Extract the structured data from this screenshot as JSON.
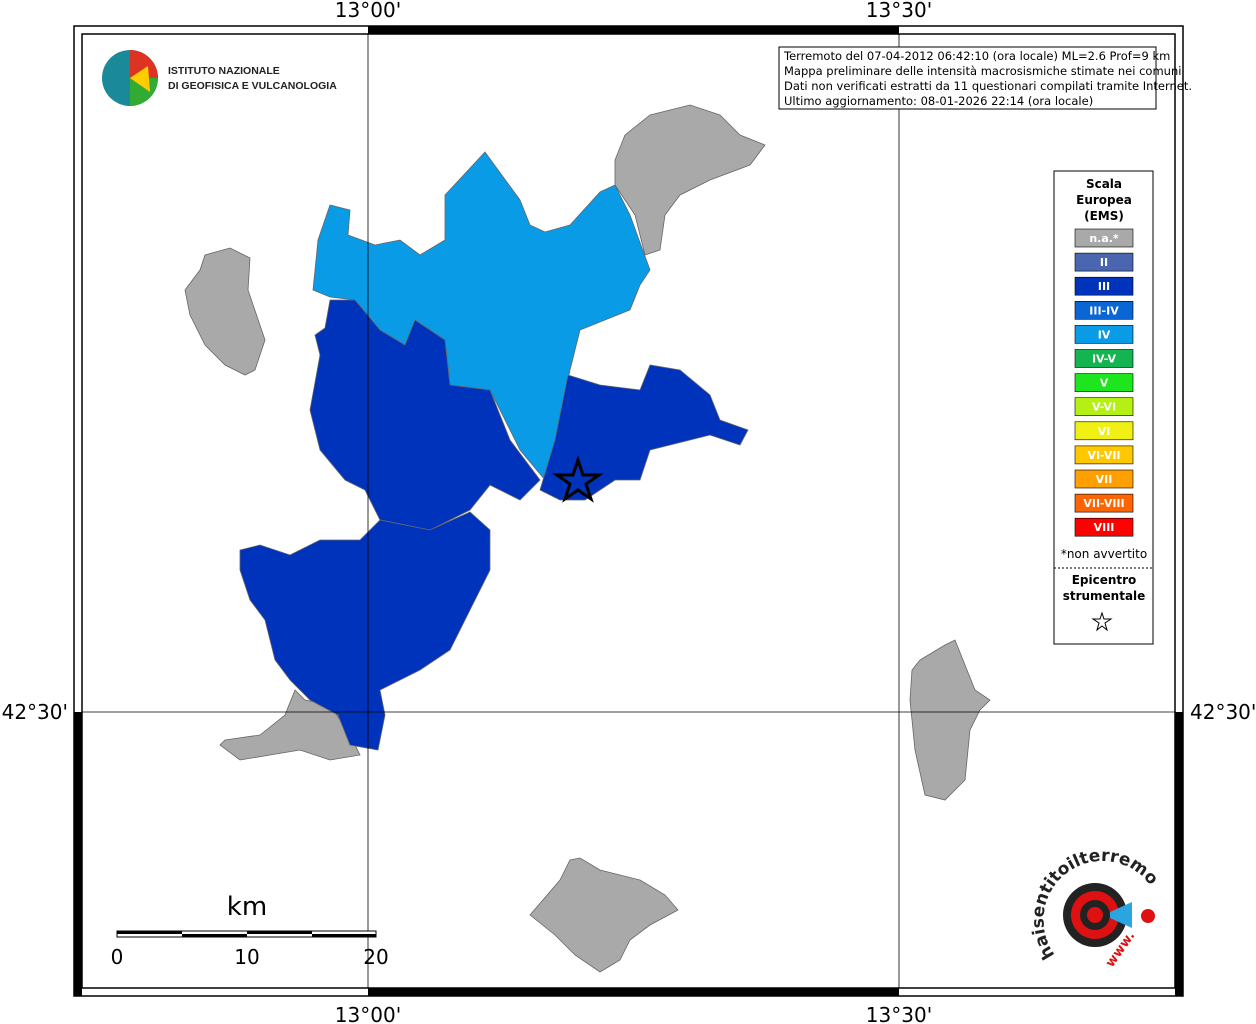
{
  "frame": {
    "top_labels": [
      "13°00'",
      "13°30'"
    ],
    "bottom_labels": [
      "13°00'",
      "13°30'"
    ],
    "left_label": "42°30'",
    "right_label": "42°30'"
  },
  "logo": {
    "line1": "ISTITUTO NAZIONALE",
    "line2": "DI GEOFISICA E VULCANOLOGIA"
  },
  "info": [
    "Terremoto del 07-04-2012 06:42:10 (ora locale) ML=2.6 Prof=9 km",
    "Mappa preliminare delle intensità macrosismiche stimate nei comuni",
    "Dati non verificati estratti da 11 questionari compilati tramite Internet.",
    "Ultimo aggiornamento: 08-01-2026 22:14 (ora locale)"
  ],
  "legend": {
    "title": [
      "Scala",
      "Europea",
      "(EMS)"
    ],
    "items": [
      {
        "label": "n.a.*",
        "color": "#a9a9a9"
      },
      {
        "label": "II",
        "color": "#4a66b0"
      },
      {
        "label": "III",
        "color": "#0033bb"
      },
      {
        "label": "III-IV",
        "color": "#0a66d4"
      },
      {
        "label": "IV",
        "color": "#0a9be6"
      },
      {
        "label": "IV-V",
        "color": "#14b450"
      },
      {
        "label": "V",
        "color": "#1ee61e"
      },
      {
        "label": "V-VI",
        "color": "#b4f014"
      },
      {
        "label": "VI",
        "color": "#f0f014"
      },
      {
        "label": "VI-VII",
        "color": "#ffc800"
      },
      {
        "label": "VII",
        "color": "#ffa000"
      },
      {
        "label": "VII-VIII",
        "color": "#ff6400"
      },
      {
        "label": "VIII",
        "color": "#ff0000"
      }
    ],
    "note": "*non avvertito",
    "epicenter": [
      "Epicentro",
      "strumentale"
    ]
  },
  "scale_bar": {
    "unit": "km",
    "labels": [
      0,
      10,
      20
    ]
  },
  "badge": {
    "text": "haisentitoilterremoto.it",
    "www": "www."
  }
}
